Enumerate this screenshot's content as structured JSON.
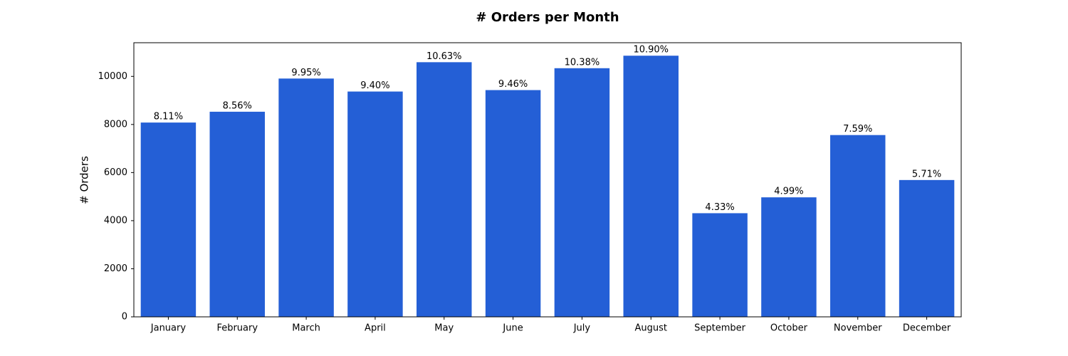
{
  "chart_data": {
    "type": "bar",
    "title": "# Orders per Month",
    "y_label": "# Orders",
    "categories": [
      "January",
      "February",
      "March",
      "April",
      "May",
      "June",
      "July",
      "August",
      "September",
      "October",
      "November",
      "December"
    ],
    "values": [
      8080,
      8530,
      9910,
      9370,
      10590,
      9430,
      10340,
      10860,
      4310,
      4970,
      7560,
      5690
    ],
    "share_labels": [
      "8.11%",
      "8.56%",
      "9.95%",
      "9.40%",
      "10.63%",
      "9.46%",
      "10.38%",
      "10.90%",
      "4.33%",
      "4.99%",
      "7.59%",
      "5.71%"
    ],
    "color": "#245fd6",
    "ylim": [
      0,
      11400
    ],
    "yticks": [
      0,
      2000,
      4000,
      6000,
      8000,
      10000
    ],
    "grid": false
  }
}
